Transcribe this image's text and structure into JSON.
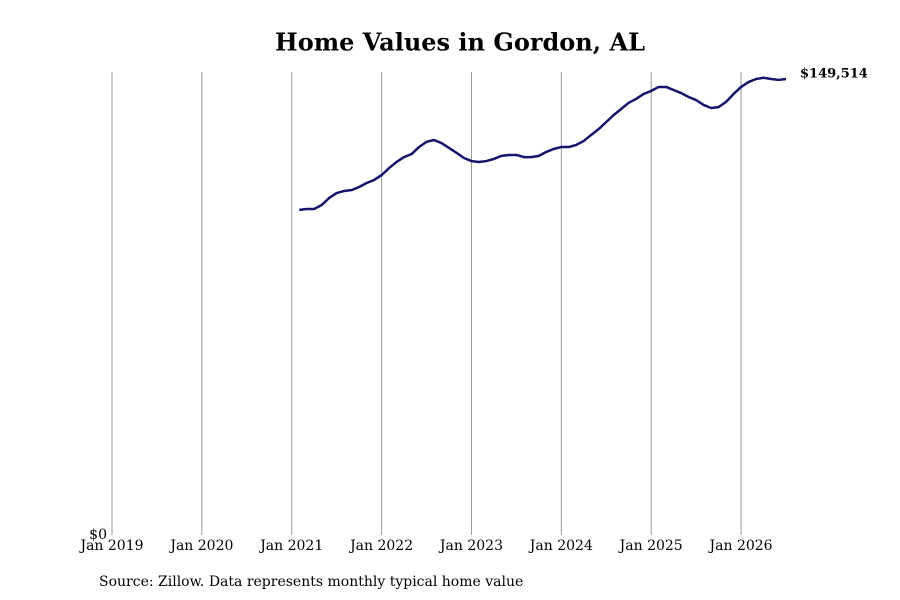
{
  "chart_data": {
    "type": "line",
    "title": "Home Values in Gordon, AL",
    "x": [
      "2021-02",
      "2021-03",
      "2021-04",
      "2021-05",
      "2021-06",
      "2021-07",
      "2021-08",
      "2021-09",
      "2021-10",
      "2021-11",
      "2021-12",
      "2022-01",
      "2022-02",
      "2022-03",
      "2022-04",
      "2022-05",
      "2022-06",
      "2022-07",
      "2022-08",
      "2022-09",
      "2022-10",
      "2022-11",
      "2022-12",
      "2023-01",
      "2023-02",
      "2023-03",
      "2023-04",
      "2023-05",
      "2023-06",
      "2023-07",
      "2023-08",
      "2023-09",
      "2023-10",
      "2023-11",
      "2023-12",
      "2024-01",
      "2024-02",
      "2024-03",
      "2024-04",
      "2024-05",
      "2024-06",
      "2024-07",
      "2024-08",
      "2024-09",
      "2024-10",
      "2024-11",
      "2024-12",
      "2025-01",
      "2025-02",
      "2025-03",
      "2025-04",
      "2025-05",
      "2025-06",
      "2025-07",
      "2025-08",
      "2025-09",
      "2025-10",
      "2025-11",
      "2025-12",
      "2026-01",
      "2026-02",
      "2026-03",
      "2026-04",
      "2026-05",
      "2026-06",
      "2026-07"
    ],
    "series": [
      {
        "color": "#14146b",
        "values": [
          106600,
          106900,
          106900,
          108200,
          110500,
          112100,
          112800,
          113100,
          114100,
          115400,
          116400,
          118000,
          120300,
          122300,
          123900,
          124900,
          127200,
          128900,
          129500,
          128500,
          126900,
          125300,
          123600,
          122600,
          122300,
          122600,
          123300,
          124300,
          124600,
          124600,
          123900,
          123900,
          124300,
          125600,
          126600,
          127200,
          127200,
          127900,
          129200,
          131200,
          133100,
          135400,
          137700,
          139700,
          141700,
          143000,
          144600,
          145600,
          146900,
          146900,
          145900,
          144900,
          143600,
          142600,
          141000,
          140000,
          140300,
          142000,
          144600,
          146900,
          148500,
          149500,
          149900,
          149500,
          149200,
          149514
        ]
      }
    ],
    "last_value_label": "$149,514",
    "xlim": [
      "2019-01",
      "2026-07"
    ],
    "xticks": [
      {
        "value": "2019-01",
        "label": "Jan 2019"
      },
      {
        "value": "2020-01",
        "label": "Jan 2020"
      },
      {
        "value": "2021-01",
        "label": "Jan 2021"
      },
      {
        "value": "2022-01",
        "label": "Jan 2022"
      },
      {
        "value": "2023-01",
        "label": "Jan 2023"
      },
      {
        "value": "2024-01",
        "label": "Jan 2024"
      },
      {
        "value": "2025-01",
        "label": "Jan 2025"
      },
      {
        "value": "2026-01",
        "label": "Jan 2026"
      }
    ],
    "ylim": [
      0,
      151800
    ],
    "yticks": [
      {
        "value": 0,
        "label": "$0"
      }
    ],
    "grid": true,
    "source": "Source: Zillow. Data represents monthly typical home value"
  }
}
